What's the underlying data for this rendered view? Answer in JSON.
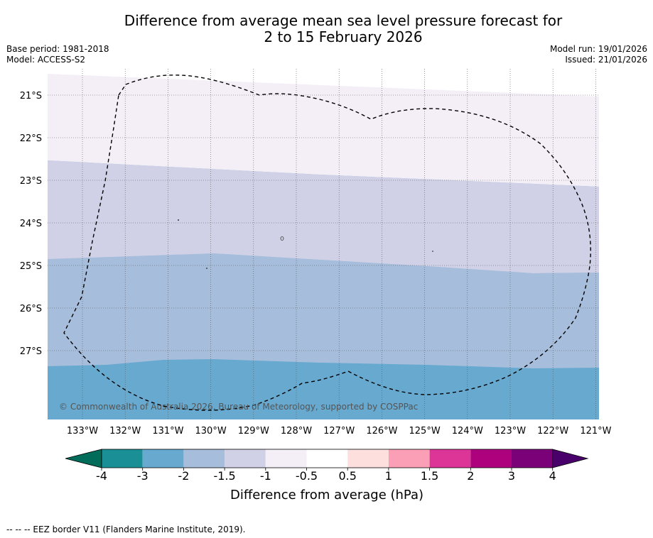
{
  "title": {
    "line1": "Difference from average mean sea level pressure forecast for",
    "line2": "2 to 15 February 2026"
  },
  "meta": {
    "base_period": "Base period: 1981-2018",
    "model": "Model: ACCESS-S2",
    "model_run": "Model run: 19/01/2026",
    "issued": "Issued: 21/01/2026"
  },
  "map": {
    "lat_labels": [
      "21°S",
      "22°S",
      "23°S",
      "24°S",
      "25°S",
      "26°S",
      "27°S"
    ],
    "lon_labels": [
      "133°W",
      "132°W",
      "131°W",
      "130°W",
      "129°W",
      "128°W",
      "127°W",
      "126°W",
      "125°W",
      "124°W",
      "123°W",
      "122°W",
      "121°W"
    ],
    "copyright": "© Commonwealth of Australia 2026, Bureau of Meteorology, supported by COSPPac",
    "bands": [
      {
        "range": "-1 to -0.5",
        "color": "#f4eef6"
      },
      {
        "range": "-1.5 to -1",
        "color": "#d0d1e6"
      },
      {
        "range": "-2 to -1.5",
        "color": "#a6bddb"
      },
      {
        "range": "-3 to -2",
        "color": "#67a9cf"
      }
    ],
    "eez_color": "#000000"
  },
  "colorbar": {
    "ticks": [
      "-4",
      "-3",
      "-2",
      "-1.5",
      "-1",
      "-0.5",
      "0.5",
      "1",
      "1.5",
      "2",
      "3",
      "4"
    ],
    "colors": [
      "#1a9096",
      "#67a9cf",
      "#a6bddb",
      "#d0d1e6",
      "#f4eef6",
      "#ffffff",
      "#fde0dd",
      "#fa9fb5",
      "#dd3497",
      "#ae017e",
      "#7a0177"
    ],
    "under_color": "#016c59",
    "over_color": "#49006a",
    "label": "Difference from average (hPa)"
  },
  "footnote": "--  --  -- EEZ border V11 (Flanders Marine Institute, 2019)."
}
